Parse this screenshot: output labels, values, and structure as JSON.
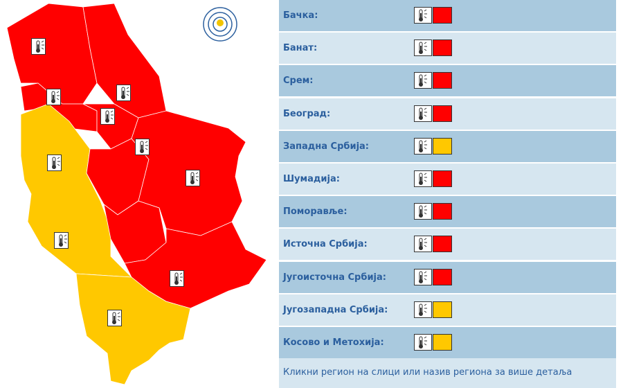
{
  "regions": [
    {
      "name": "Бачка:",
      "color": "#ff0000"
    },
    {
      "name": "Банат:",
      "color": "#ff0000"
    },
    {
      "name": "Срем:",
      "color": "#ff0000"
    },
    {
      "name": "Београд:",
      "color": "#ff0000"
    },
    {
      "name": "Западна Србија:",
      "color": "#ffc800"
    },
    {
      "name": "Шумадија:",
      "color": "#ff0000"
    },
    {
      "name": "Поморавље:",
      "color": "#ff0000"
    },
    {
      "name": "Источна Србија:",
      "color": "#ff0000"
    },
    {
      "name": "Југоисточна Србија:",
      "color": "#ff0000"
    },
    {
      "name": "Југозападна Србија:",
      "color": "#ffc800"
    },
    {
      "name": "Косово и Метохија:",
      "color": "#ffc800"
    }
  ],
  "hint": "Кликни регион на слици или назив региона за више детаља"
}
